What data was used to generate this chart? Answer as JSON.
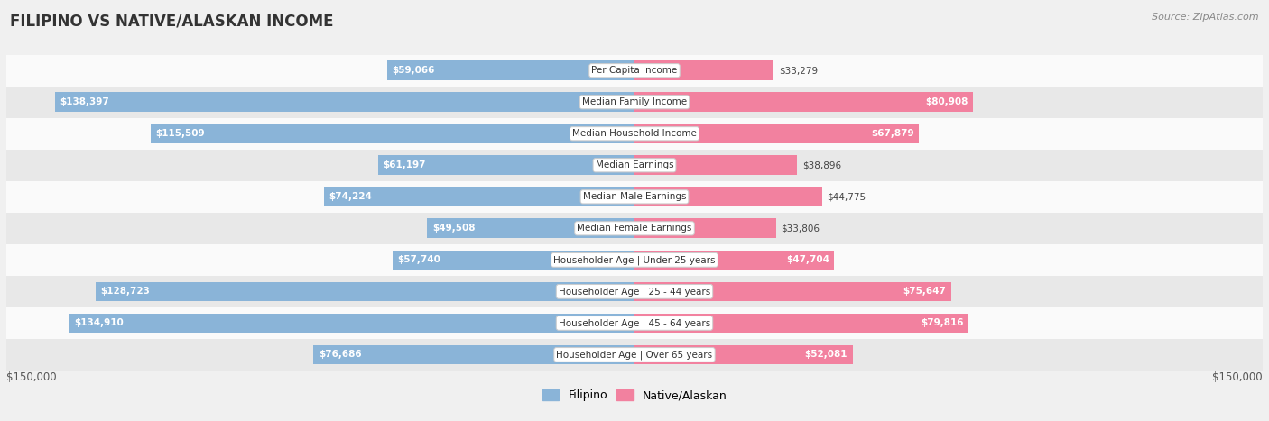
{
  "title": "FILIPINO VS NATIVE/ALASKAN INCOME",
  "source": "Source: ZipAtlas.com",
  "categories": [
    "Per Capita Income",
    "Median Family Income",
    "Median Household Income",
    "Median Earnings",
    "Median Male Earnings",
    "Median Female Earnings",
    "Householder Age | Under 25 years",
    "Householder Age | 25 - 44 years",
    "Householder Age | 45 - 64 years",
    "Householder Age | Over 65 years"
  ],
  "filipino_values": [
    59066,
    138397,
    115509,
    61197,
    74224,
    49508,
    57740,
    128723,
    134910,
    76686
  ],
  "native_values": [
    33279,
    80908,
    67879,
    38896,
    44775,
    33806,
    47704,
    75647,
    79816,
    52081
  ],
  "filipino_labels": [
    "$59,066",
    "$138,397",
    "$115,509",
    "$61,197",
    "$74,224",
    "$49,508",
    "$57,740",
    "$128,723",
    "$134,910",
    "$76,686"
  ],
  "native_labels": [
    "$33,279",
    "$80,908",
    "$67,879",
    "$38,896",
    "$44,775",
    "$33,806",
    "$47,704",
    "$75,647",
    "$79,816",
    "$52,081"
  ],
  "filipino_color": "#8ab4d8",
  "native_color": "#f2819f",
  "max_value": 150000,
  "x_label_left": "$150,000",
  "x_label_right": "$150,000",
  "background_color": "#f0f0f0",
  "row_colors": [
    "#fafafa",
    "#e8e8e8"
  ]
}
